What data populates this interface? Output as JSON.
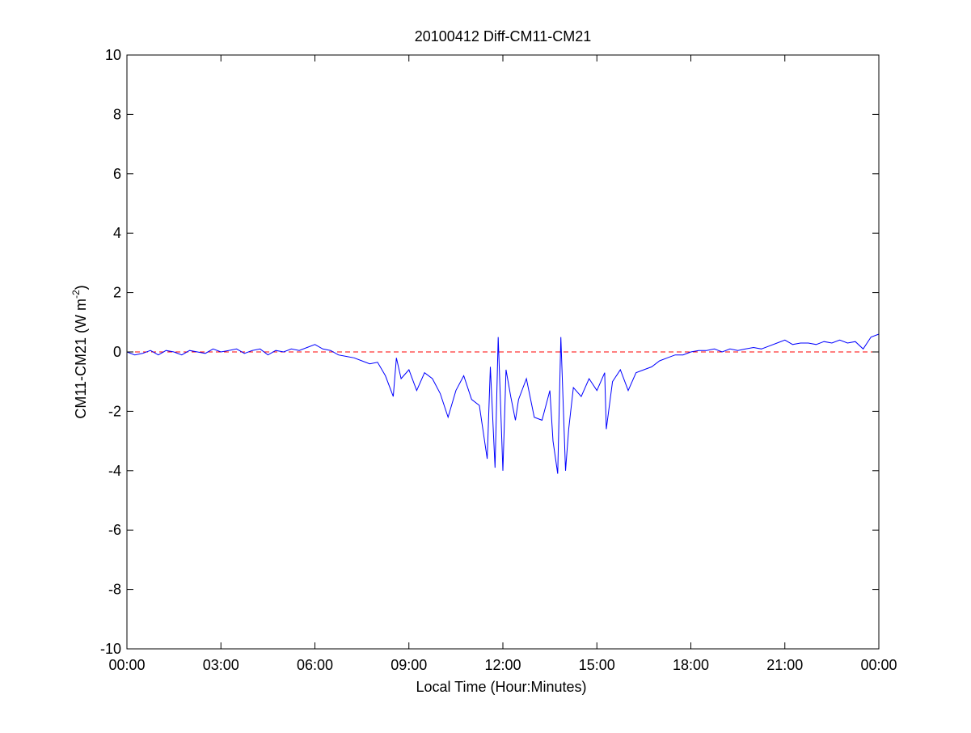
{
  "chart_data": {
    "type": "line",
    "title": "20100412 Diff-CM11-CM21",
    "xlabel": "Local Time (Hour:Minutes)",
    "ylabel_main": "CM11-CM21 (W m",
    "ylabel_exp": "-2",
    "ylabel_close": ")",
    "xlim": [
      0,
      24
    ],
    "ylim": [
      -10,
      10
    ],
    "xticks": [
      0,
      3,
      6,
      9,
      12,
      15,
      18,
      21,
      24
    ],
    "xtick_labels": [
      "00:00",
      "03:00",
      "06:00",
      "09:00",
      "12:00",
      "15:00",
      "18:00",
      "21:00",
      "00:00"
    ],
    "yticks": [
      -10,
      -8,
      -6,
      -4,
      -2,
      0,
      2,
      4,
      6,
      8,
      10
    ],
    "ytick_labels": [
      "-10",
      "-8",
      "-6",
      "-4",
      "-2",
      "0",
      "2",
      "4",
      "6",
      "8",
      "10"
    ],
    "grid": false,
    "reference_line": {
      "y": 0,
      "color": "#ff0000",
      "style": "dashed"
    },
    "series": [
      {
        "color": "#0000ff",
        "x": [
          0,
          0.25,
          0.5,
          0.75,
          1,
          1.25,
          1.5,
          1.75,
          2,
          2.25,
          2.5,
          2.75,
          3,
          3.25,
          3.5,
          3.75,
          4,
          4.25,
          4.5,
          4.75,
          5,
          5.25,
          5.5,
          5.75,
          6,
          6.25,
          6.5,
          6.75,
          7,
          7.25,
          7.5,
          7.75,
          8,
          8.25,
          8.5,
          8.6,
          8.75,
          9,
          9.25,
          9.5,
          9.75,
          10,
          10.25,
          10.5,
          10.75,
          11,
          11.25,
          11.5,
          11.6,
          11.75,
          11.85,
          12,
          12.1,
          12.25,
          12.4,
          12.5,
          12.75,
          13,
          13.25,
          13.5,
          13.6,
          13.75,
          13.85,
          14,
          14.1,
          14.25,
          14.5,
          14.75,
          15,
          15.25,
          15.3,
          15.5,
          15.75,
          16,
          16.25,
          16.5,
          16.75,
          17,
          17.25,
          17.5,
          17.75,
          18,
          18.25,
          18.5,
          18.75,
          19,
          19.25,
          19.5,
          19.75,
          20,
          20.25,
          20.5,
          20.75,
          21,
          21.25,
          21.5,
          21.75,
          22,
          22.25,
          22.5,
          22.75,
          23,
          23.25,
          23.5,
          23.75,
          24
        ],
        "y": [
          0,
          -0.1,
          -0.05,
          0.05,
          -0.1,
          0.05,
          0,
          -0.1,
          0.05,
          0,
          -0.05,
          0.1,
          0,
          0.05,
          0.1,
          -0.05,
          0.05,
          0.1,
          -0.1,
          0.05,
          0,
          0.1,
          0.05,
          0.15,
          0.25,
          0.1,
          0.05,
          -0.1,
          -0.15,
          -0.2,
          -0.3,
          -0.4,
          -0.35,
          -0.8,
          -1.5,
          -0.2,
          -0.9,
          -0.6,
          -1.3,
          -0.7,
          -0.9,
          -1.4,
          -2.2,
          -1.3,
          -0.8,
          -1.6,
          -1.8,
          -3.6,
          -0.5,
          -3.9,
          0.5,
          -4.0,
          -0.6,
          -1.5,
          -2.3,
          -1.6,
          -0.9,
          -2.2,
          -2.3,
          -1.3,
          -3.0,
          -4.1,
          0.5,
          -4.0,
          -2.6,
          -1.2,
          -1.5,
          -0.9,
          -1.3,
          -0.7,
          -2.6,
          -1.0,
          -0.6,
          -1.3,
          -0.7,
          -0.6,
          -0.5,
          -0.3,
          -0.2,
          -0.1,
          -0.1,
          0.0,
          0.05,
          0.05,
          0.1,
          0.0,
          0.1,
          0.05,
          0.1,
          0.15,
          0.1,
          0.2,
          0.3,
          0.4,
          0.25,
          0.3,
          0.3,
          0.25,
          0.35,
          0.3,
          0.4,
          0.3,
          0.35,
          0.1,
          0.5,
          0.6
        ]
      }
    ]
  }
}
